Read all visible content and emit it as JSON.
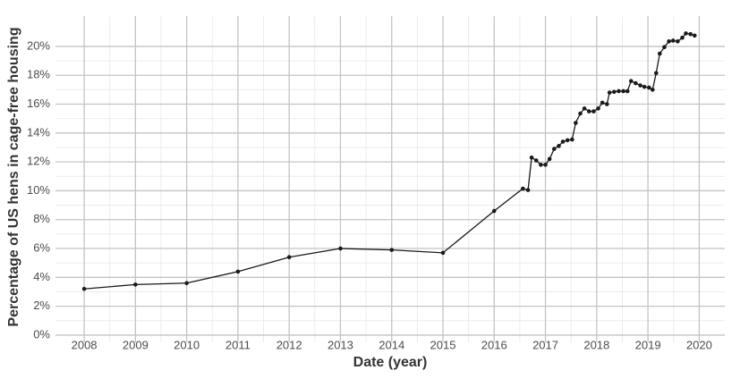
{
  "chart_data": {
    "type": "line",
    "x_label": "Date (year)",
    "y_label": "Percentage of US hens in cage-free housing",
    "x": [
      2008,
      2009,
      2010,
      2011,
      2012,
      2013,
      2014,
      2015,
      2016,
      2016.56,
      2016.66,
      2016.73,
      2016.82,
      2016.91,
      2017.0,
      2017.08,
      2017.17,
      2017.26,
      2017.34,
      2017.43,
      2017.52,
      2017.59,
      2017.68,
      2017.76,
      2017.85,
      2017.94,
      2018.03,
      2018.11,
      2018.2,
      2018.25,
      2018.34,
      2018.43,
      2018.52,
      2018.6,
      2018.67,
      2018.76,
      2018.85,
      2018.93,
      2019.02,
      2019.09,
      2019.16,
      2019.23,
      2019.32,
      2019.41,
      2019.49,
      2019.58,
      2019.67,
      2019.74,
      2019.83,
      2019.91
    ],
    "values": [
      3.2,
      3.5,
      3.6,
      4.4,
      5.4,
      6.0,
      5.9,
      5.7,
      8.6,
      10.15,
      10.05,
      12.3,
      12.1,
      11.8,
      11.8,
      12.2,
      12.9,
      13.1,
      13.4,
      13.5,
      13.55,
      14.7,
      15.35,
      15.7,
      15.5,
      15.5,
      15.7,
      16.1,
      16.0,
      16.8,
      16.85,
      16.9,
      16.9,
      16.9,
      17.6,
      17.45,
      17.3,
      17.2,
      17.15,
      17.0,
      18.15,
      19.5,
      19.95,
      20.35,
      20.4,
      20.35,
      20.6,
      20.9,
      20.85,
      20.75
    ],
    "color": "#1a1a1a",
    "xlim": [
      2007.44,
      2020.5
    ],
    "ylim": [
      -0.5,
      22.1
    ],
    "xticks": [
      2008,
      2009,
      2010,
      2011,
      2012,
      2013,
      2014,
      2015,
      2016,
      2017,
      2018,
      2019,
      2020
    ],
    "yticks": [
      {
        "value": 0,
        "label": "0%"
      },
      {
        "value": 2,
        "label": "2%"
      },
      {
        "value": 4,
        "label": "4%"
      },
      {
        "value": 6,
        "label": "6%"
      },
      {
        "value": 8,
        "label": "8%"
      },
      {
        "value": 10,
        "label": "10%"
      },
      {
        "value": 12,
        "label": "12%"
      },
      {
        "value": 14,
        "label": "14%"
      },
      {
        "value": 16,
        "label": "16%"
      },
      {
        "value": 18,
        "label": "18%"
      },
      {
        "value": 20,
        "label": "20%"
      }
    ],
    "grid": true
  }
}
